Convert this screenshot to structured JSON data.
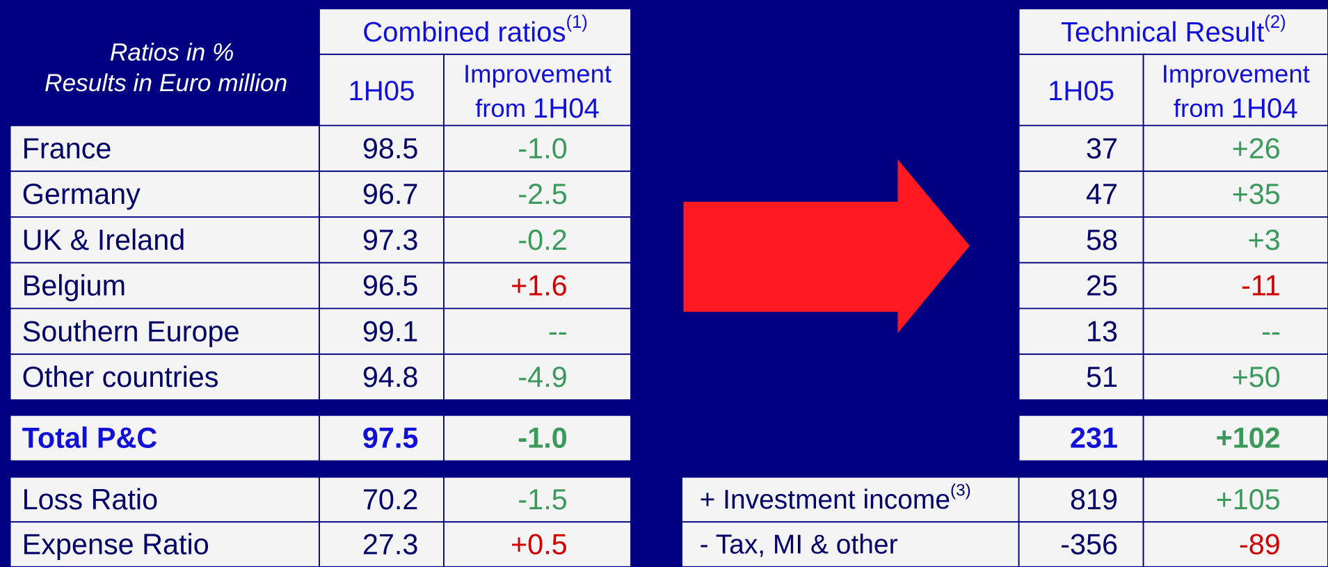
{
  "header": {
    "left": [
      "Ratios in %",
      "Results in Euro million"
    ],
    "combined": {
      "title": "Combined ratios",
      "note": "(1)"
    },
    "technical": {
      "title": "Technical Result",
      "note": "(2)"
    },
    "col_value": "1H05",
    "col_improvement": [
      "Improvement",
      "from",
      "1H04"
    ]
  },
  "colors": {
    "green": "#3b9a5b",
    "red": "#d00000"
  },
  "rows": [
    {
      "label": "France",
      "ratio": "98.5",
      "ratio_change": "-1.0",
      "ratio_color": "green",
      "result": "37",
      "result_change": "+26",
      "result_color": "green"
    },
    {
      "label": "Germany",
      "ratio": "96.7",
      "ratio_change": "-2.5",
      "ratio_color": "green",
      "result": "47",
      "result_change": "+35",
      "result_color": "green"
    },
    {
      "label": "UK & Ireland",
      "ratio": "97.3",
      "ratio_change": "-0.2",
      "ratio_color": "green",
      "result": "58",
      "result_change": "+3",
      "result_color": "green"
    },
    {
      "label": "Belgium",
      "ratio": "96.5",
      "ratio_change": "+1.6",
      "ratio_color": "red",
      "result": "25",
      "result_change": "-11",
      "result_color": "red"
    },
    {
      "label": "Southern Europe",
      "ratio": "99.1",
      "ratio_change": "--",
      "ratio_color": "green",
      "result": "13",
      "result_change": "--",
      "result_color": "green"
    },
    {
      "label": "Other countries",
      "ratio": "94.8",
      "ratio_change": "-4.9",
      "ratio_color": "green",
      "result": "51",
      "result_change": "+50",
      "result_color": "green"
    }
  ],
  "total": {
    "label": "Total P&C",
    "ratio": "97.5",
    "ratio_change": "-1.0",
    "ratio_color": "green",
    "result": "231",
    "result_change": "+102",
    "result_color": "green"
  },
  "ratio_rows": [
    {
      "label": "Loss Ratio",
      "ratio": "70.2",
      "change": "-1.5",
      "color": "green"
    },
    {
      "label": "Expense Ratio",
      "ratio": "27.3",
      "change": "+0.5",
      "color": "red"
    }
  ],
  "result_rows": [
    {
      "label": "+ Investment income",
      "note": "(3)",
      "result": "819",
      "change": "+105",
      "color": "green"
    },
    {
      "label": "- Tax, MI & other",
      "result": "-356",
      "change": "-89",
      "color": "red"
    }
  ]
}
